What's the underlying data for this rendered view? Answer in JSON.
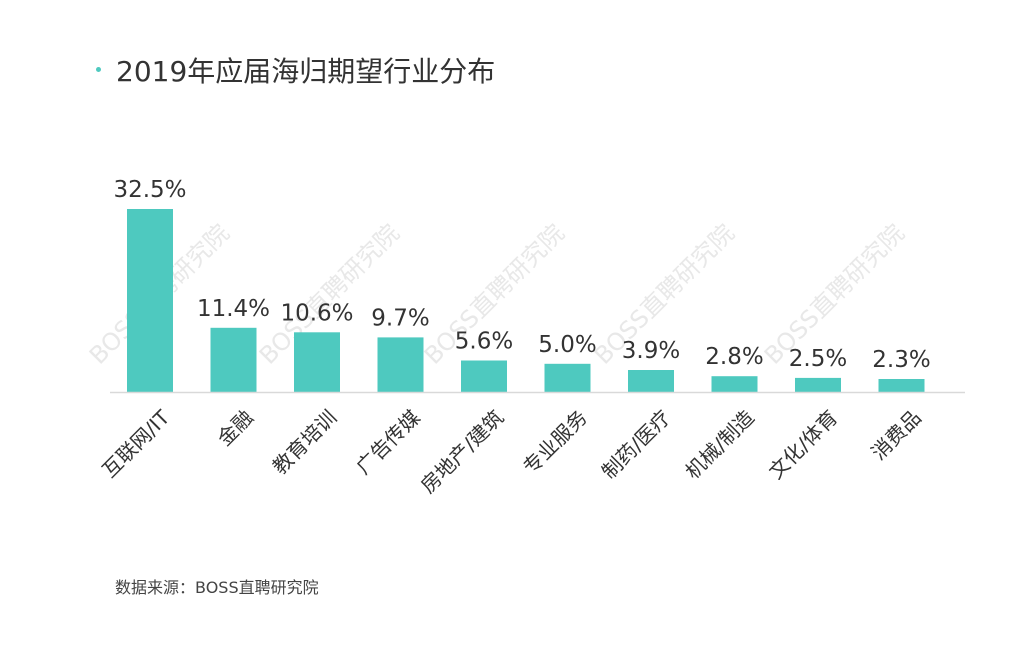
{
  "colors": {
    "bar": "#4ec9bf",
    "axis": "#d9d9d9",
    "text": "#333333",
    "title_dot": "#4ec9bf",
    "watermark": "#e6e6e6"
  },
  "watermark": "BOSS直聘研究院",
  "source_note": "数据来源：BOSS直聘研究院",
  "chart_data": {
    "type": "bar",
    "title": "2019年应届海归期望行业分布",
    "xlabel": "",
    "ylabel": "",
    "categories": [
      "互联网/IT",
      "金融",
      "教育培训",
      "广告传媒",
      "房地产/建筑",
      "专业服务",
      "制药/医疗",
      "机械/制造",
      "文化/体育",
      "消费品"
    ],
    "values": [
      32.5,
      11.4,
      10.6,
      9.7,
      5.6,
      5.0,
      3.9,
      2.8,
      2.5,
      2.3
    ],
    "data_labels": [
      "32.5%",
      "11.4%",
      "10.6%",
      "9.7%",
      "5.6%",
      "5.0%",
      "3.9%",
      "2.8%",
      "2.5%",
      "2.3%"
    ],
    "ylim": [
      0,
      32.5
    ],
    "grid": false,
    "legend": "none"
  }
}
